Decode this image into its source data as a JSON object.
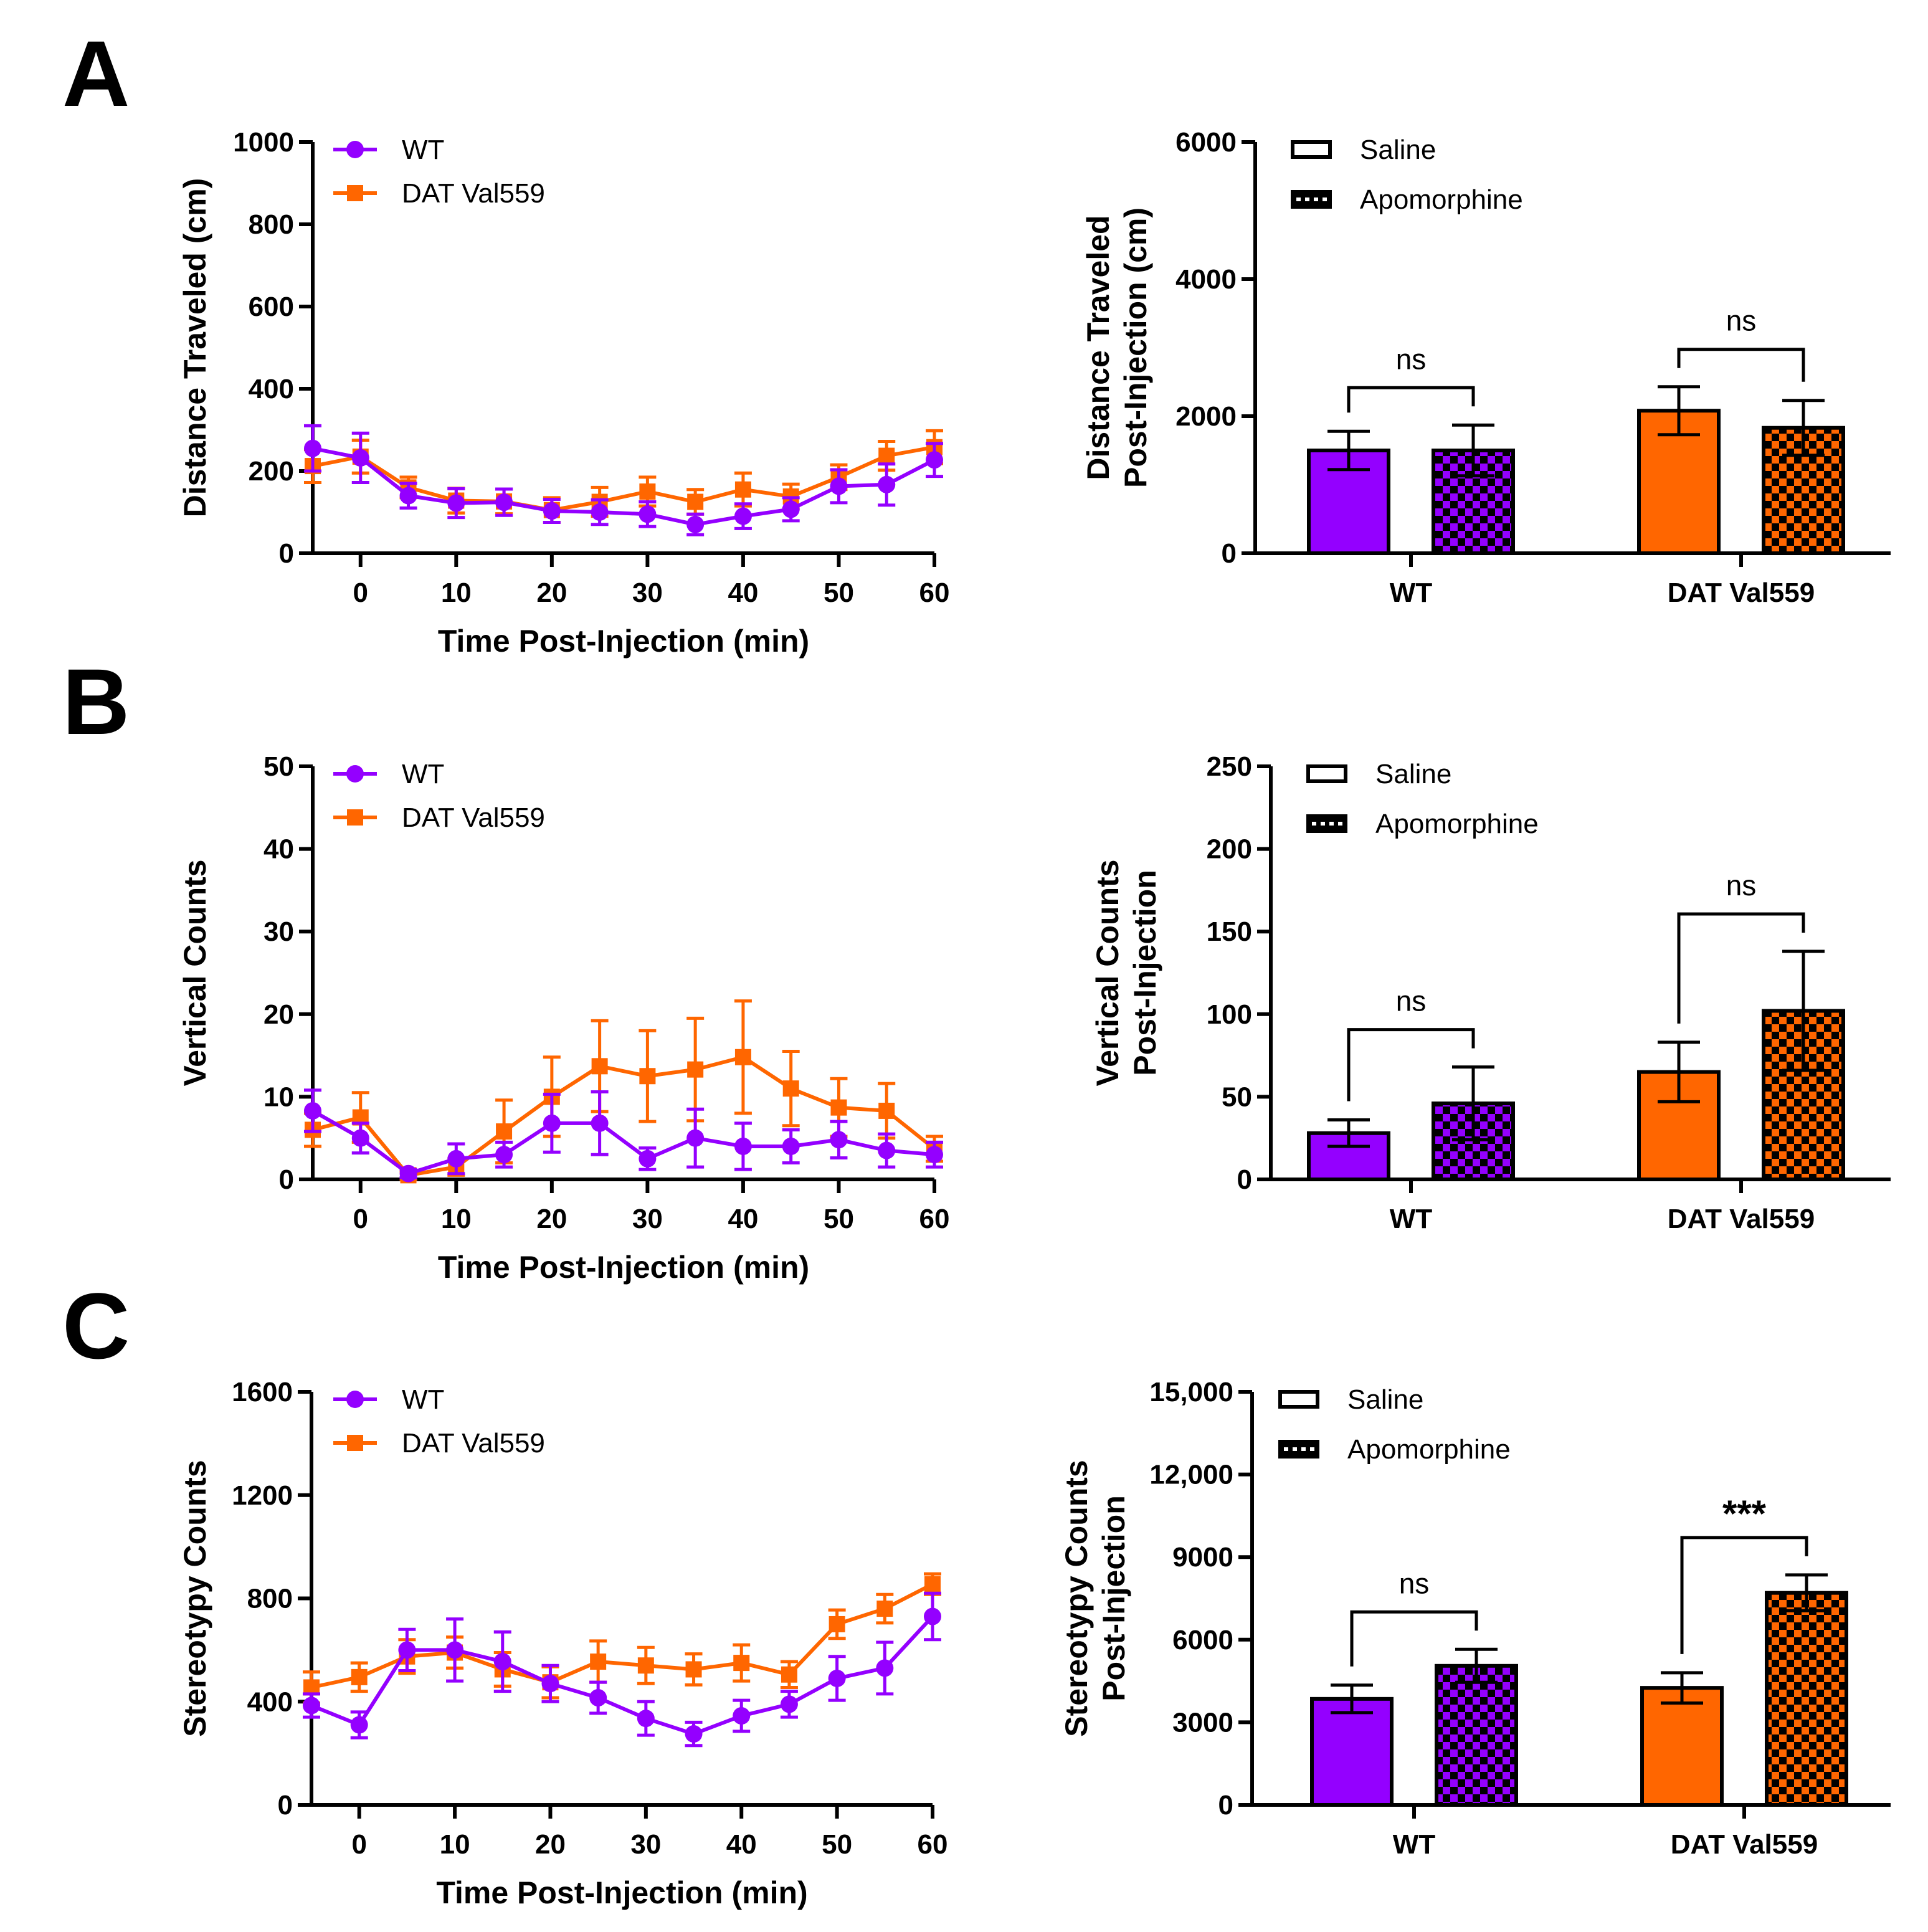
{
  "colors": {
    "wt": "#9400FF",
    "dat": "#FF6600",
    "axis": "#000000"
  },
  "chart_data": [
    {
      "panel": "A",
      "type": "line",
      "title": "",
      "xlabel": "Time Post-Injection (min)",
      "ylabel": "Distance Traveled (cm)",
      "xlim": [
        -5,
        60
      ],
      "ylim": [
        0,
        1000
      ],
      "xticks": [
        "0",
        "10",
        "20",
        "30",
        "40",
        "50",
        "60"
      ],
      "yticks": [
        "0",
        "200",
        "400",
        "600",
        "800",
        "1000"
      ],
      "x": [
        -5,
        0,
        5,
        10,
        15,
        20,
        25,
        30,
        35,
        40,
        45,
        50,
        55,
        60
      ],
      "legend": "top-left",
      "series": [
        {
          "name": "WT",
          "marker": "circle",
          "values": [
            255,
            232,
            140,
            122,
            124,
            103,
            100,
            95,
            70,
            90,
            107,
            163,
            167,
            227
          ],
          "errors": [
            55,
            60,
            30,
            35,
            32,
            28,
            30,
            30,
            25,
            30,
            28,
            40,
            50,
            40
          ]
        },
        {
          "name": "DAT Val559",
          "marker": "square",
          "values": [
            212,
            235,
            160,
            128,
            126,
            105,
            125,
            150,
            125,
            155,
            138,
            185,
            237,
            258
          ],
          "errors": [
            40,
            40,
            25,
            30,
            30,
            30,
            35,
            35,
            30,
            40,
            30,
            30,
            35,
            40
          ]
        }
      ]
    },
    {
      "panel": "A",
      "type": "bar",
      "ylabel": "Distance Traveled Post-Injection (cm)",
      "ylabel_lines": [
        "Distance Traveled",
        "Post-Injection  (cm)"
      ],
      "ylim": [
        0,
        6000
      ],
      "yticks": [
        "0",
        "2000",
        "4000",
        "6000"
      ],
      "categories": [
        "WT",
        "DAT Val559"
      ],
      "legend": "top-left",
      "legend_entries": [
        "Saline",
        "Apomorphine"
      ],
      "series": [
        {
          "name": "Saline",
          "pattern": "solid",
          "values": [
            1500,
            2080
          ],
          "errors": [
            280,
            350
          ]
        },
        {
          "name": "Apomorphine",
          "pattern": "checker",
          "values": [
            1500,
            1830
          ],
          "errors": [
            370,
            400
          ]
        }
      ],
      "annotations": [
        {
          "group": "WT",
          "text": "ns"
        },
        {
          "group": "DAT Val559",
          "text": "ns"
        }
      ]
    },
    {
      "panel": "B",
      "type": "line",
      "title": "",
      "xlabel": "Time Post-Injection (min)",
      "ylabel": "Vertical Counts",
      "xlim": [
        -5,
        60
      ],
      "ylim": [
        0,
        50
      ],
      "xticks": [
        "0",
        "10",
        "20",
        "30",
        "40",
        "50",
        "60"
      ],
      "yticks": [
        "0",
        "10",
        "20",
        "30",
        "40",
        "50"
      ],
      "x": [
        -5,
        0,
        5,
        10,
        15,
        20,
        25,
        30,
        35,
        40,
        45,
        50,
        55,
        60
      ],
      "legend": "top-left",
      "series": [
        {
          "name": "WT",
          "marker": "circle",
          "values": [
            8.3,
            5,
            0.7,
            2.5,
            3,
            6.8,
            6.8,
            2.5,
            5,
            4,
            4,
            4.8,
            3.5,
            3
          ],
          "errors": [
            2.5,
            1.8,
            0.5,
            1.8,
            1.5,
            3.5,
            3.8,
            1.3,
            3.5,
            2.8,
            2,
            2.2,
            2,
            1.5
          ]
        },
        {
          "name": "DAT Val559",
          "marker": "square",
          "values": [
            6,
            7.5,
            0.5,
            1.5,
            5.8,
            10,
            13.7,
            12.5,
            13.3,
            14.8,
            11,
            8.7,
            8.3,
            3.7
          ],
          "errors": [
            2,
            3,
            0.5,
            1,
            3.8,
            4.8,
            5.5,
            5.5,
            6.2,
            6.8,
            4.5,
            3.5,
            3.3,
            1.5
          ]
        }
      ]
    },
    {
      "panel": "B",
      "type": "bar",
      "ylabel": "Vertical Counts Post-Injection",
      "ylabel_lines": [
        "Vertical Counts",
        "Post-Injection"
      ],
      "ylim": [
        0,
        250
      ],
      "yticks": [
        "0",
        "50",
        "100",
        "150",
        "200",
        "250"
      ],
      "categories": [
        "WT",
        "DAT Val559"
      ],
      "legend": "top-left",
      "legend_entries": [
        "Saline",
        "Apomorphine"
      ],
      "series": [
        {
          "name": "Saline",
          "pattern": "solid",
          "values": [
            28,
            65
          ],
          "errors": [
            8,
            18
          ]
        },
        {
          "name": "Apomorphine",
          "pattern": "checker",
          "values": [
            46,
            102
          ],
          "errors": [
            22,
            36
          ]
        }
      ],
      "annotations": [
        {
          "group": "WT",
          "text": "ns"
        },
        {
          "group": "DAT Val559",
          "text": "ns"
        }
      ]
    },
    {
      "panel": "C",
      "type": "line",
      "title": "",
      "xlabel": "Time Post-Injection (min)",
      "ylabel": "Stereotypy Counts",
      "xlim": [
        -5,
        60
      ],
      "ylim": [
        0,
        1600
      ],
      "xticks": [
        "0",
        "10",
        "20",
        "30",
        "40",
        "50",
        "60"
      ],
      "yticks": [
        "0",
        "400",
        "800",
        "1200",
        "1600"
      ],
      "x": [
        -5,
        0,
        5,
        10,
        15,
        20,
        25,
        30,
        35,
        40,
        45,
        50,
        55,
        60
      ],
      "legend": "top-left",
      "series": [
        {
          "name": "WT",
          "marker": "circle",
          "values": [
            385,
            310,
            600,
            600,
            555,
            470,
            415,
            335,
            275,
            345,
            390,
            490,
            530,
            730
          ],
          "errors": [
            45,
            50,
            80,
            120,
            115,
            70,
            60,
            65,
            45,
            60,
            50,
            85,
            100,
            90
          ]
        },
        {
          "name": "DAT Val559",
          "marker": "square",
          "values": [
            455,
            495,
            575,
            590,
            525,
            475,
            555,
            540,
            525,
            550,
            505,
            700,
            760,
            855
          ],
          "errors": [
            60,
            55,
            65,
            60,
            65,
            60,
            80,
            70,
            60,
            70,
            50,
            55,
            55,
            40
          ]
        }
      ]
    },
    {
      "panel": "C",
      "type": "bar",
      "ylabel": "Stereotypy Counts Post-Injection",
      "ylabel_lines": [
        "Stereotypy  Counts",
        "Post-Injection"
      ],
      "ylim": [
        0,
        15000
      ],
      "yticks": [
        "0",
        "3000",
        "6000",
        "9000",
        "12,000",
        "15,000"
      ],
      "categories": [
        "WT",
        "DAT Val559"
      ],
      "legend": "top-left",
      "legend_entries": [
        "Saline",
        "Apomorphine"
      ],
      "series": [
        {
          "name": "Saline",
          "pattern": "solid",
          "values": [
            3850,
            4250
          ],
          "errors": [
            500,
            550
          ]
        },
        {
          "name": "Apomorphine",
          "pattern": "checker",
          "values": [
            5050,
            7700
          ],
          "errors": [
            600,
            650
          ]
        }
      ],
      "annotations": [
        {
          "group": "WT",
          "text": "ns"
        },
        {
          "group": "DAT Val559",
          "text": "***"
        }
      ]
    }
  ]
}
